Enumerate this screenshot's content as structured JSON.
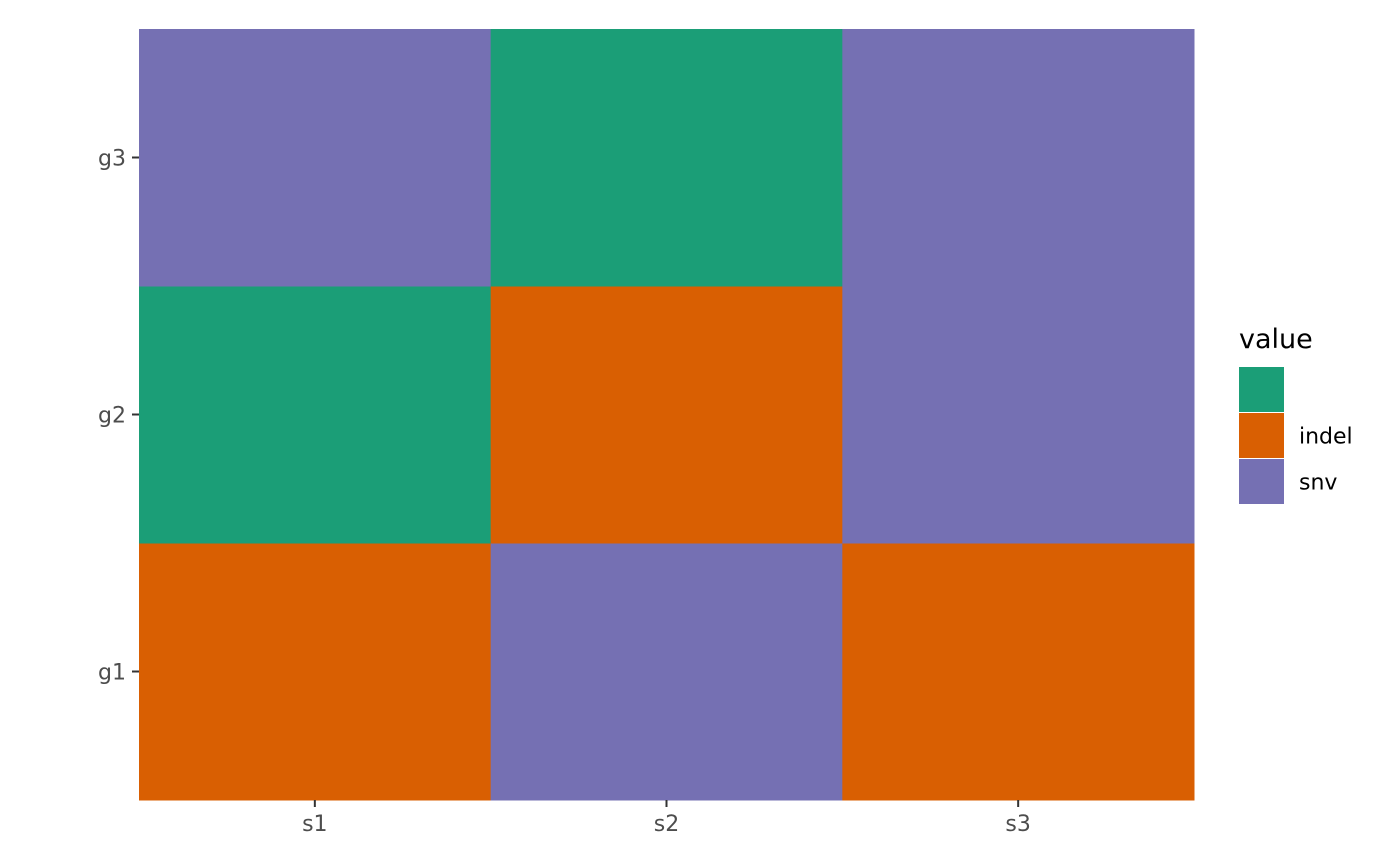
{
  "chart_data": {
    "type": "heatmap",
    "title": "",
    "xlabel": "",
    "ylabel": "",
    "x_categories": [
      "s1",
      "s2",
      "s3"
    ],
    "y_categories": [
      "g1",
      "g2",
      "g3"
    ],
    "cells": [
      {
        "x": "s1",
        "y": "g1",
        "value": "indel"
      },
      {
        "x": "s2",
        "y": "g1",
        "value": "snv"
      },
      {
        "x": "s3",
        "y": "g1",
        "value": "indel"
      },
      {
        "x": "s1",
        "y": "g2",
        "value": ""
      },
      {
        "x": "s2",
        "y": "g2",
        "value": "indel"
      },
      {
        "x": "s3",
        "y": "g2",
        "value": "snv"
      },
      {
        "x": "s1",
        "y": "g3",
        "value": "snv"
      },
      {
        "x": "s2",
        "y": "g3",
        "value": ""
      },
      {
        "x": "s3",
        "y": "g3",
        "value": "snv"
      }
    ],
    "legend": {
      "title": "value",
      "placement": "right",
      "entries": [
        {
          "label": "",
          "color": "#1B9E77"
        },
        {
          "label": "indel",
          "color": "#D95F02"
        },
        {
          "label": "snv",
          "color": "#7570B3"
        }
      ]
    },
    "grid": false
  }
}
